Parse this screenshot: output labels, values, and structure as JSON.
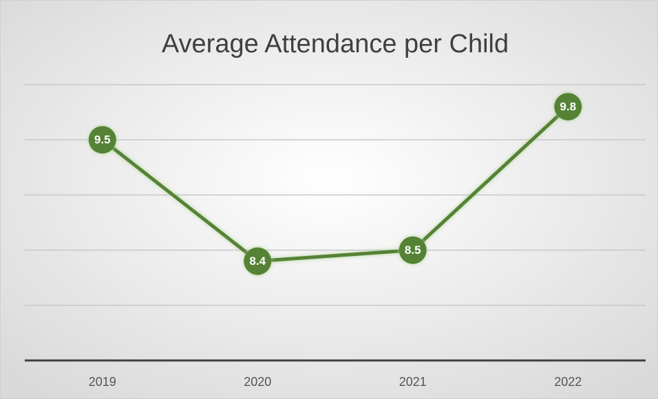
{
  "chart_data": {
    "type": "line",
    "title": "Average Attendance per Child",
    "categories": [
      "2019",
      "2020",
      "2021",
      "2022"
    ],
    "values": [
      9.5,
      8.4,
      8.5,
      9.8
    ],
    "color": "#548235",
    "ylim": [
      7.5,
      10
    ],
    "yticks": [
      7.5,
      8,
      8.5,
      9,
      9.5,
      10
    ],
    "grid": true
  }
}
